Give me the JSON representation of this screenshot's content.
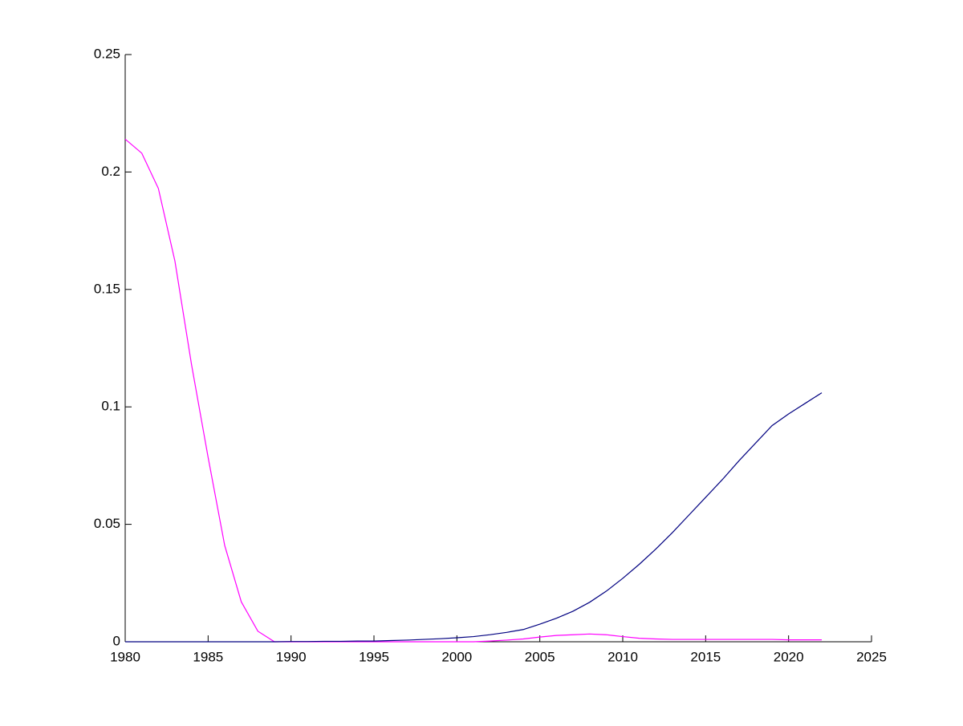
{
  "chart_data": {
    "type": "line",
    "x": [
      1980,
      1981,
      1982,
      1983,
      1984,
      1985,
      1986,
      1987,
      1988,
      1989,
      1990,
      1991,
      1992,
      1993,
      1994,
      1995,
      1996,
      1997,
      1998,
      1999,
      2000,
      2001,
      2002,
      2003,
      2004,
      2005,
      2006,
      2007,
      2008,
      2009,
      2010,
      2011,
      2012,
      2013,
      2014,
      2015,
      2016,
      2017,
      2018,
      2019,
      2020,
      2021,
      2022
    ],
    "series": [
      {
        "color": "#ff00ff",
        "values": [
          0.214,
          0.208,
          0.193,
          0.162,
          0.118,
          0.0785,
          0.041,
          0.017,
          0.0045,
          0,
          0,
          0,
          0,
          0,
          0,
          0,
          0,
          0,
          0,
          0,
          0,
          0,
          0.0003,
          0.0007,
          0.0012,
          0.002,
          0.0027,
          0.003,
          0.0033,
          0.003,
          0.0022,
          0.0015,
          0.0012,
          0.001,
          0.001,
          0.001,
          0.001,
          0.001,
          0.001,
          0.001,
          0.0008,
          0.0008,
          0.0008
        ]
      },
      {
        "color": "#000080",
        "values": [
          0,
          0,
          0,
          0,
          0,
          0,
          0,
          0,
          0,
          0,
          0.0001,
          0.0001,
          0.0002,
          0.0002,
          0.0003,
          0.0003,
          0.0005,
          0.0007,
          0.001,
          0.0013,
          0.0017,
          0.0022,
          0.003,
          0.004,
          0.0052,
          0.0075,
          0.01,
          0.013,
          0.0168,
          0.0215,
          0.027,
          0.033,
          0.0395,
          0.0465,
          0.054,
          0.0615,
          0.069,
          0.077,
          0.0845,
          0.092,
          0.097,
          0.1015,
          0.106
        ]
      }
    ],
    "xlim": [
      1980,
      2025
    ],
    "xticks": [
      1980,
      1985,
      1990,
      1995,
      2000,
      2005,
      2010,
      2015,
      2020,
      2025
    ],
    "ylim": [
      0,
      0.25
    ],
    "yticks": [
      0,
      0.05,
      0.1,
      0.15,
      0.2,
      0.25
    ]
  }
}
